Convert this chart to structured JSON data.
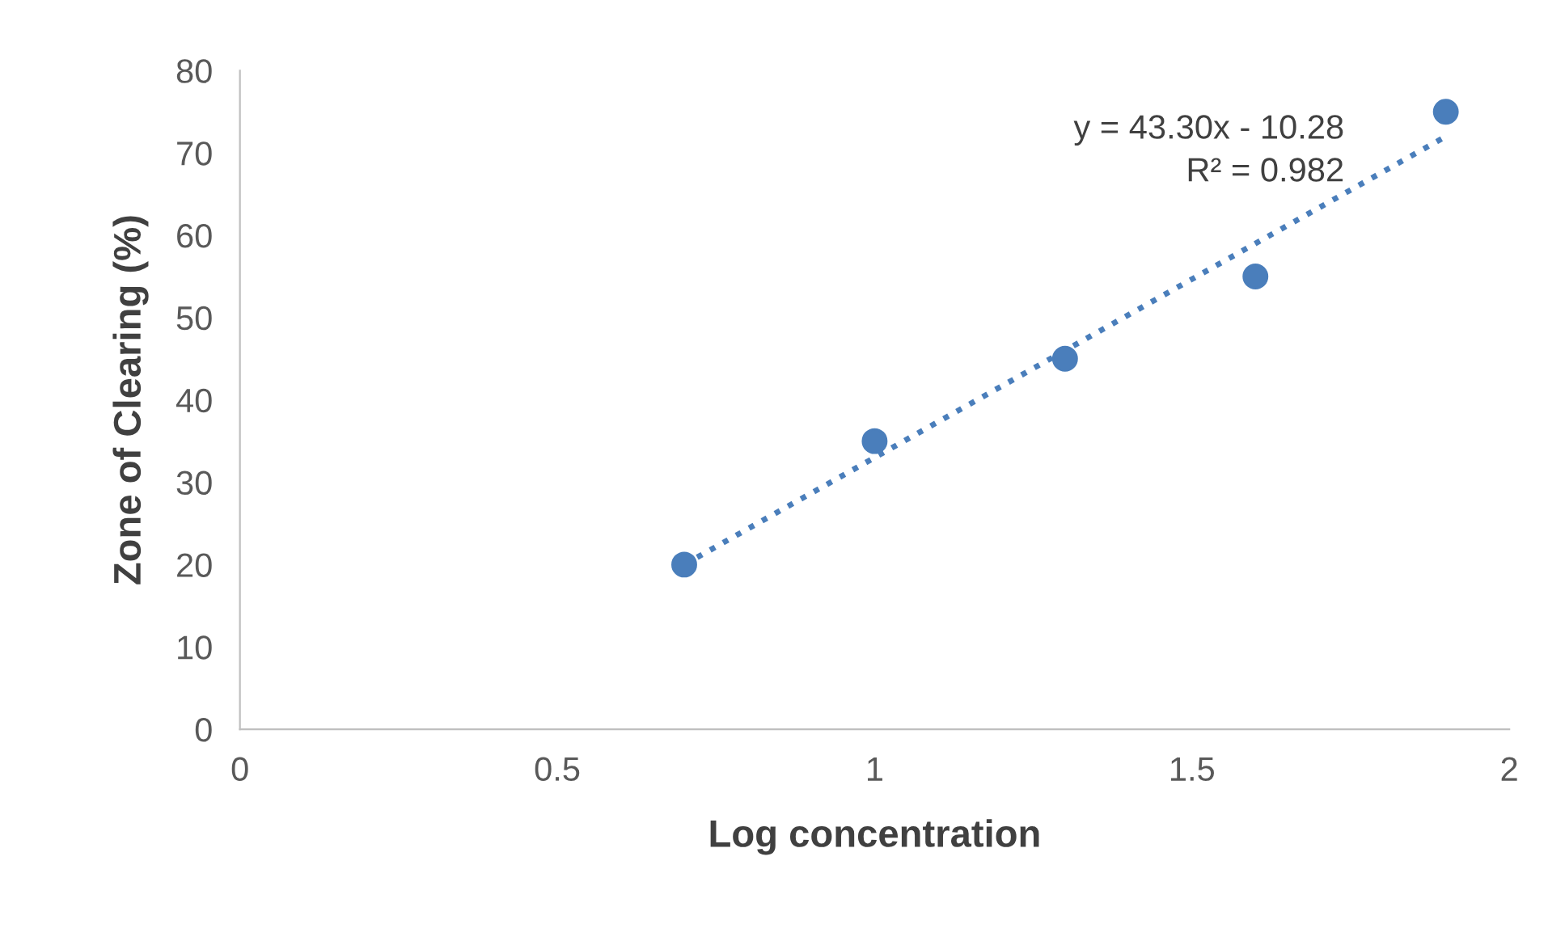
{
  "chart_data": {
    "type": "scatter",
    "xlabel": "Log concentration",
    "ylabel": "Zone of Clearing (%)",
    "xlim": [
      0,
      2
    ],
    "xticks": [
      0,
      0.5,
      1,
      1.5,
      2
    ],
    "ylim": [
      0,
      80
    ],
    "yticks": [
      0,
      10,
      20,
      30,
      40,
      50,
      60,
      70,
      80
    ],
    "grid": false,
    "marker": "circle",
    "series": [
      {
        "type": "scatter",
        "color": "#4a7ebb",
        "x": [
          0.7,
          1.0,
          1.3,
          1.6,
          1.9
        ],
        "values": [
          20,
          35,
          45,
          55,
          75
        ]
      },
      {
        "type": "line",
        "color": "#4a7ebb",
        "line_style": "dotted",
        "marker": "none",
        "x": [
          0.7,
          1.9
        ],
        "values": [
          20,
          72
        ]
      }
    ],
    "annotations": [
      "y = 43.30x - 10.28",
      "R² = 0.982"
    ]
  }
}
